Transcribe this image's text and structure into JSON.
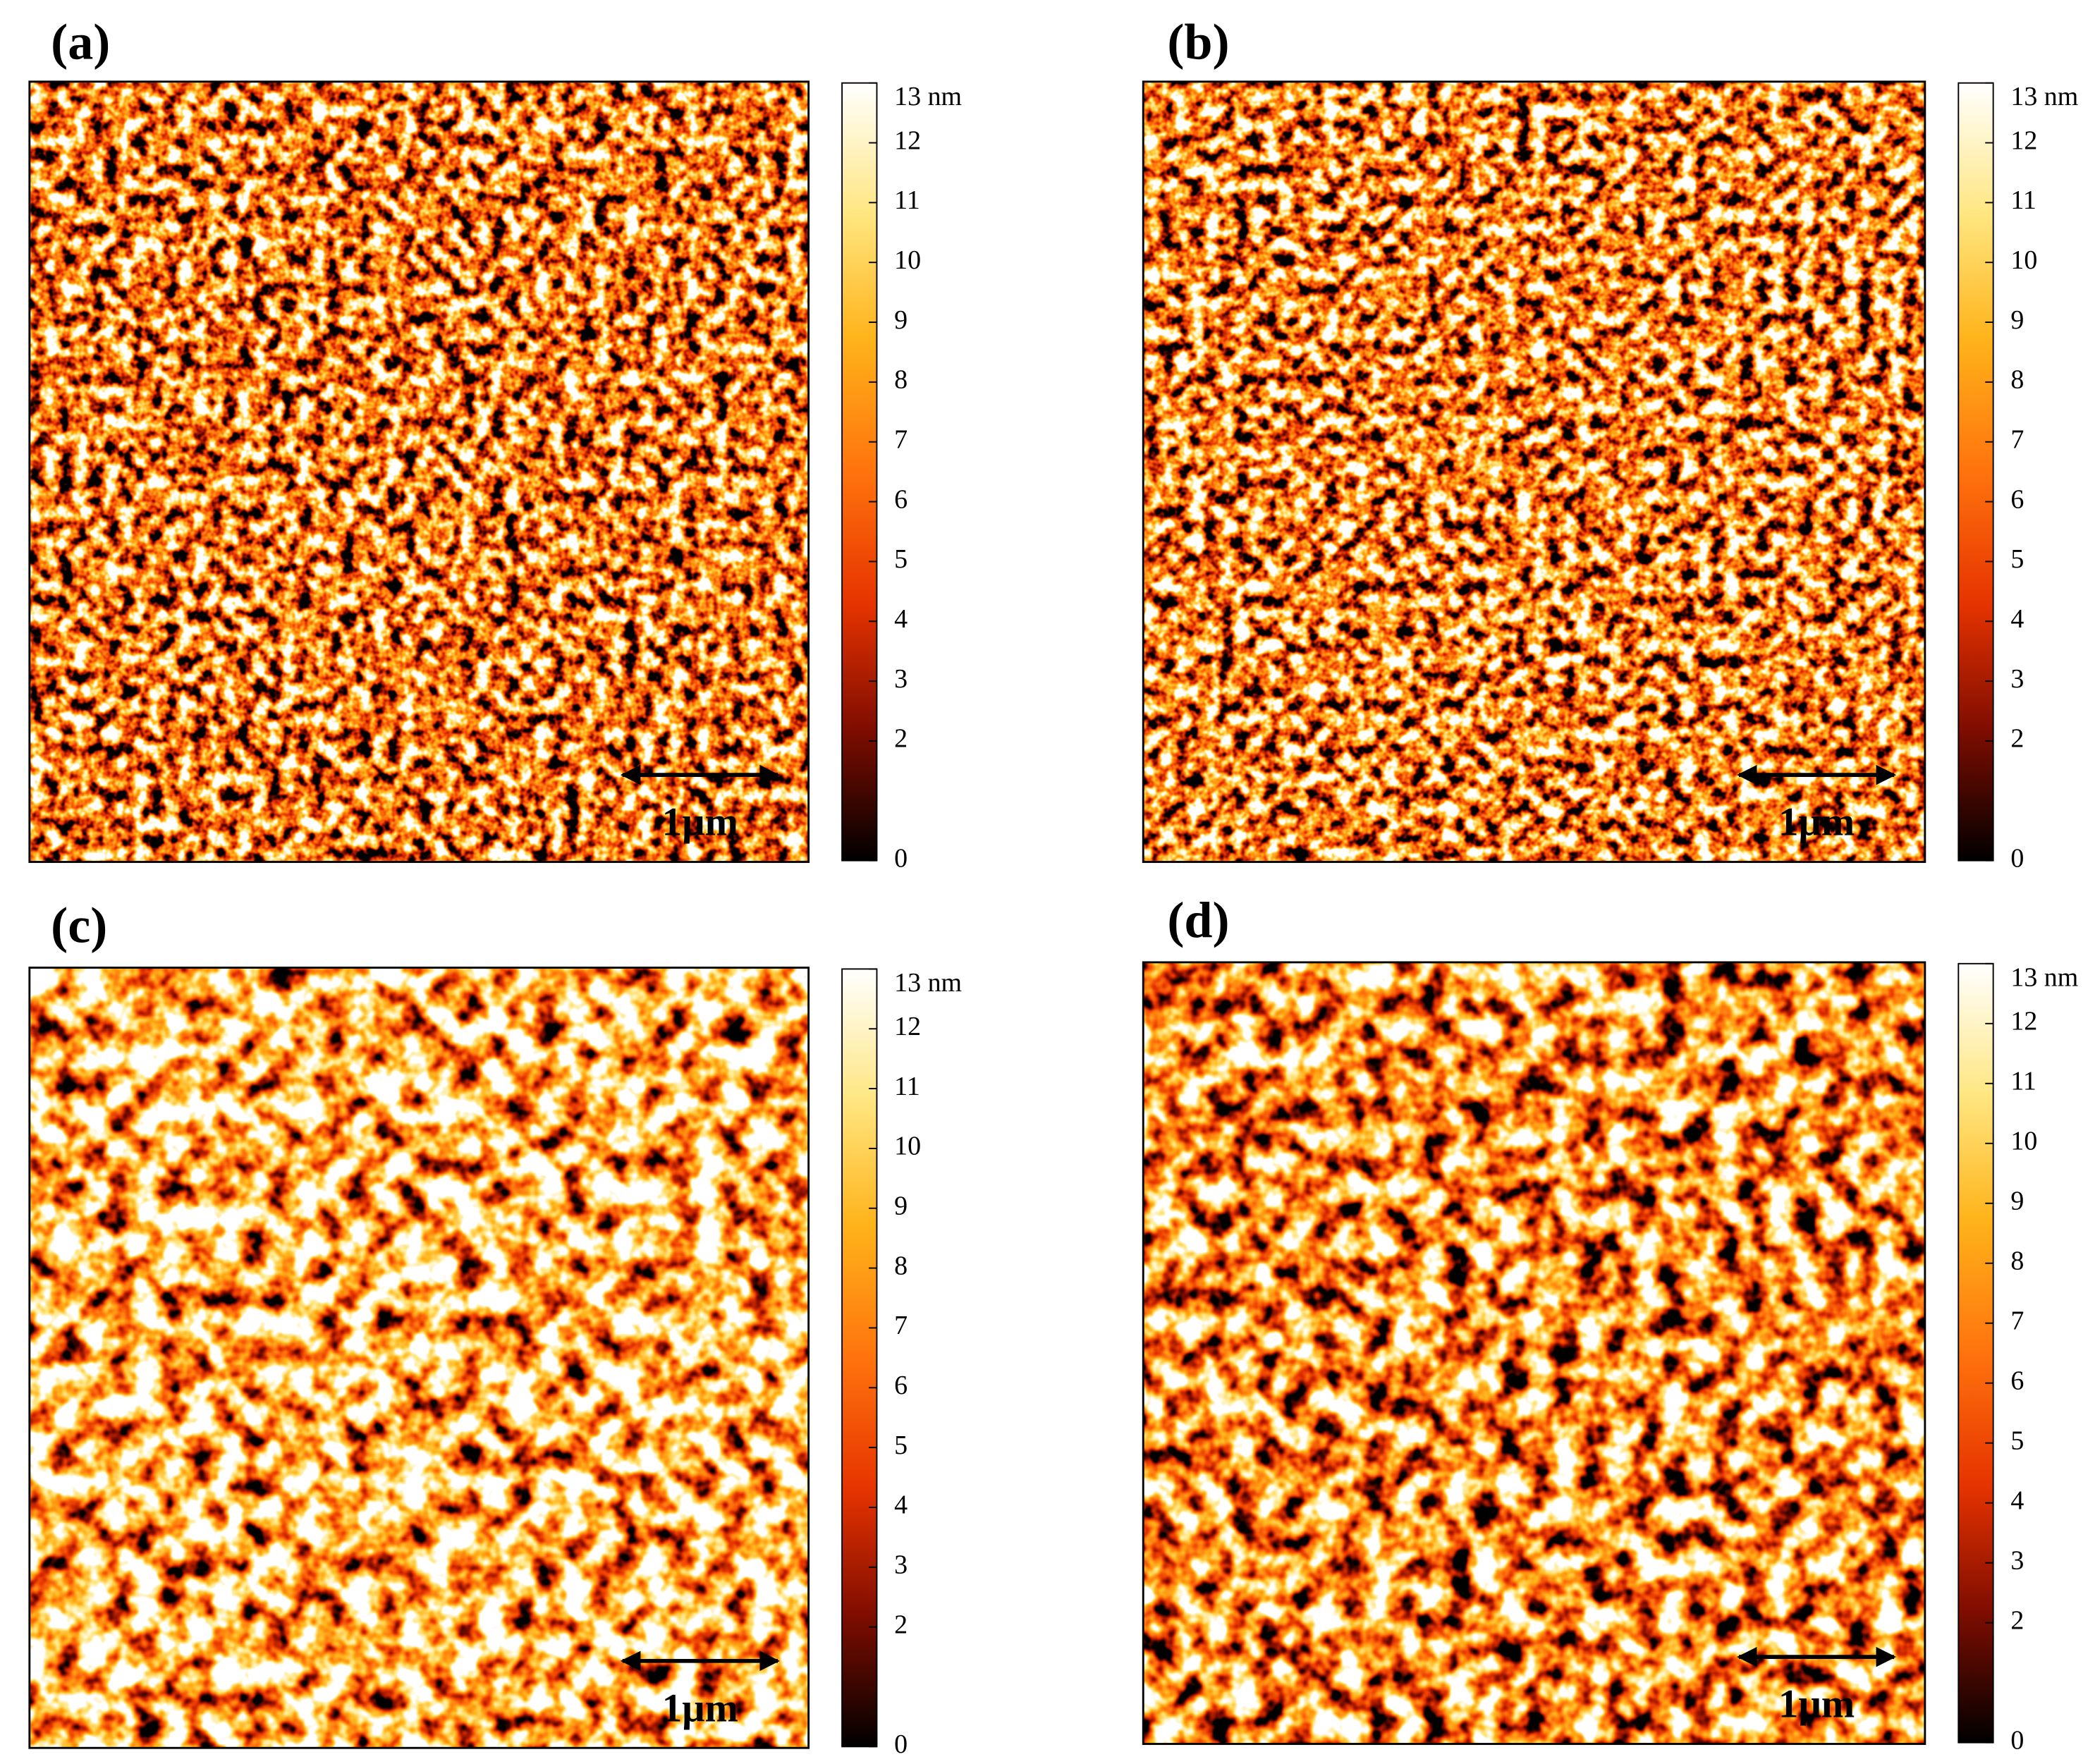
{
  "panels": [
    {
      "label": "(a)",
      "scale_bar": "1μm",
      "colorbar": {
        "range": [
          0,
          13
        ],
        "ticks": [
          0,
          2,
          3,
          4,
          5,
          6,
          7,
          8,
          9,
          10,
          11,
          12,
          {
            "value": 13,
            "label": "13 nm"
          }
        ]
      }
    },
    {
      "label": "(b)",
      "scale_bar": "1μm",
      "colorbar": {
        "range": [
          0,
          13
        ],
        "ticks": [
          0,
          2,
          3,
          4,
          5,
          6,
          7,
          8,
          9,
          10,
          11,
          12,
          {
            "value": 13,
            "label": "13 nm"
          }
        ]
      }
    },
    {
      "label": "(c)",
      "scale_bar": "1μm",
      "colorbar": {
        "range": [
          0,
          13
        ],
        "ticks": [
          0,
          2,
          3,
          4,
          5,
          6,
          7,
          8,
          9,
          10,
          11,
          12,
          {
            "value": 13,
            "label": "13 nm"
          }
        ]
      }
    },
    {
      "label": "(d)",
      "scale_bar": "1μm",
      "colorbar": {
        "range": [
          0,
          13
        ],
        "ticks": [
          0,
          2,
          3,
          4,
          5,
          6,
          7,
          8,
          9,
          10,
          11,
          12,
          {
            "value": 13,
            "label": "13 nm"
          }
        ]
      }
    }
  ]
}
